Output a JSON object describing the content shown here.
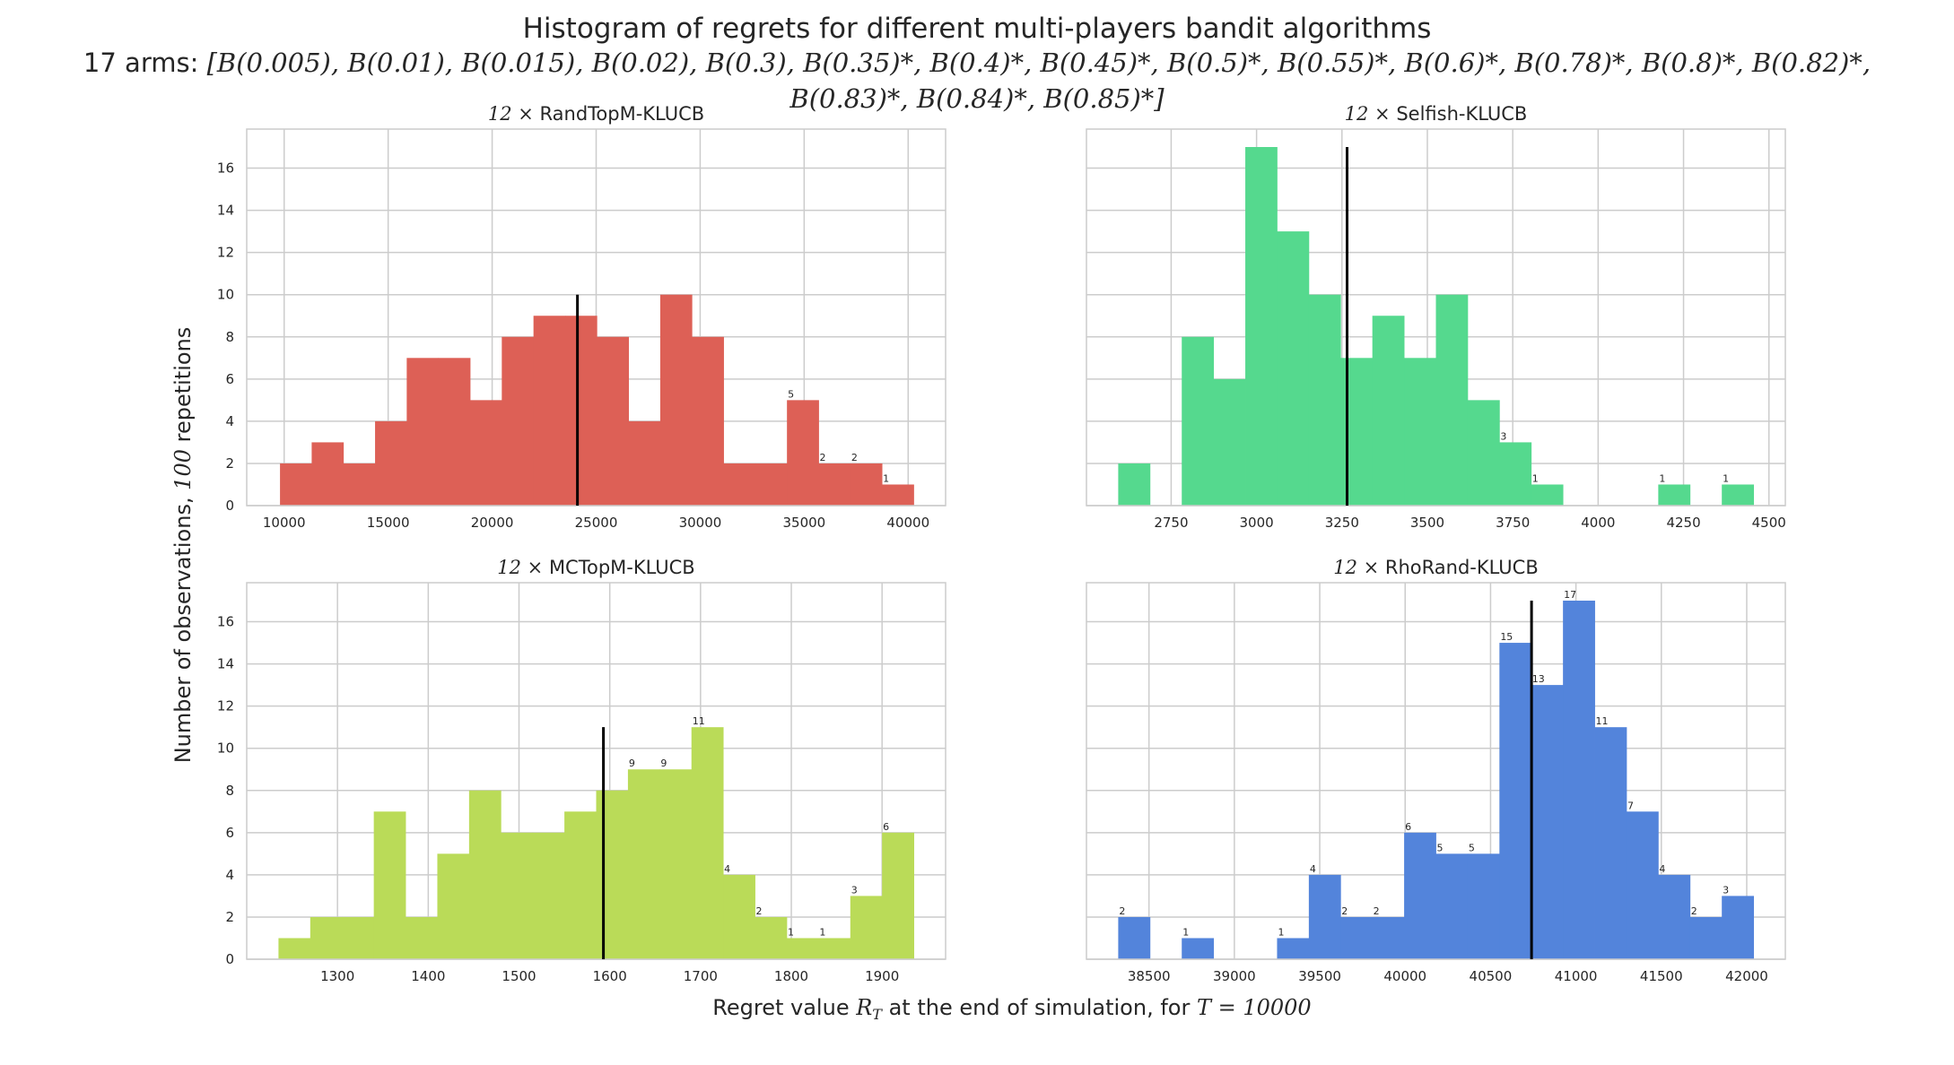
{
  "figure": {
    "title": "Histogram of regrets for different multi-players bandit algorithms",
    "arms_prefix": "17 arms: ",
    "arms_line1": "[B(0.005), B(0.01), B(0.015), B(0.02), B(0.3), B(0.35)*, B(0.4)*, B(0.45)*, B(0.5)*, B(0.55)*, B(0.6)*, B(0.78)*, B(0.8)*, B(0.82)*,",
    "arms_line2": "B(0.83)*, B(0.84)*, B(0.85)*]",
    "ylabel_text": "Number of observations, ",
    "ylabel_math": "100",
    "ylabel_suffix": " repetitions",
    "xlabel_text": "Regret value ",
    "xlabel_math1": "R",
    "xlabel_math1_sub": "T",
    "xlabel_mid": " at the end of simulation, for ",
    "xlabel_math2": "T = 10000",
    "grid": true
  },
  "chart_data": [
    {
      "type": "bar",
      "title_prefix": "12 ×",
      "title": "RandTopM-KLUCB",
      "color": "#dd6056",
      "bin_edges": [
        9800,
        11323,
        12847,
        14370,
        15893,
        17417,
        18940,
        20463,
        21987,
        23510,
        25033,
        26557,
        28080,
        29603,
        31127,
        32650,
        34173,
        35697,
        37220,
        38743,
        40267
      ],
      "counts": [
        2,
        3,
        2,
        4,
        7,
        7,
        5,
        8,
        9,
        9,
        8,
        4,
        10,
        8,
        2,
        2,
        5,
        2,
        2,
        1
      ],
      "xticks": [
        10000,
        15000,
        20000,
        25000,
        30000,
        35000,
        40000
      ],
      "xlim": [
        8200,
        41800
      ],
      "ylim": [
        0,
        17.85
      ],
      "yticks": [
        0,
        2,
        4,
        6,
        8,
        10,
        12,
        14,
        16
      ],
      "show_yticks": true,
      "mean": 24100,
      "mean_line_height": 10,
      "bar_labels": [
        {
          "bin": 16,
          "text": "5"
        },
        {
          "bin": 17,
          "text": "2"
        },
        {
          "bin": 18,
          "text": "2"
        },
        {
          "bin": 19,
          "text": "1"
        }
      ]
    },
    {
      "type": "bar",
      "title_prefix": "12 ×",
      "title": "Selfish-KLUCB",
      "color": "#55d98e",
      "bin_edges": [
        2595,
        2688,
        2781,
        2874,
        2967,
        3060,
        3153,
        3246,
        3339,
        3432,
        3525,
        3618,
        3711,
        3804,
        3897,
        3990,
        4083,
        4176,
        4269,
        4362,
        4455
      ],
      "counts": [
        2,
        0,
        8,
        6,
        17,
        13,
        10,
        7,
        9,
        7,
        10,
        5,
        3,
        1,
        0,
        0,
        0,
        1,
        0,
        1
      ],
      "xticks": [
        2750,
        3000,
        3250,
        3500,
        3750,
        4000,
        4250,
        4500
      ],
      "xlim": [
        2502,
        4548
      ],
      "ylim": [
        0,
        17.85
      ],
      "yticks": [
        0,
        2,
        4,
        6,
        8,
        10,
        12,
        14,
        16
      ],
      "show_yticks": false,
      "mean": 3265,
      "mean_line_height": 17,
      "bar_labels": [
        {
          "bin": 12,
          "text": "3"
        },
        {
          "bin": 13,
          "text": "1"
        },
        {
          "bin": 17,
          "text": "1"
        },
        {
          "bin": 19,
          "text": "1"
        }
      ]
    },
    {
      "type": "bar",
      "title_prefix": "12 ×",
      "title": "MCTopM-KLUCB",
      "color": "#badb58",
      "bin_edges": [
        1235,
        1270,
        1305,
        1340,
        1375,
        1410,
        1445,
        1480,
        1515,
        1550,
        1585,
        1620,
        1655,
        1690,
        1725,
        1760,
        1795,
        1830,
        1865,
        1900,
        1935
      ],
      "counts": [
        1,
        2,
        2,
        7,
        2,
        5,
        8,
        6,
        6,
        7,
        8,
        9,
        9,
        11,
        4,
        2,
        1,
        1,
        3,
        6
      ],
      "xticks": [
        1300,
        1400,
        1500,
        1600,
        1700,
        1800,
        1900
      ],
      "xlim": [
        1200,
        1970
      ],
      "ylim": [
        0,
        17.85
      ],
      "yticks": [
        0,
        2,
        4,
        6,
        8,
        10,
        12,
        14,
        16
      ],
      "show_yticks": true,
      "mean": 1593,
      "mean_line_height": 11,
      "bar_labels": [
        {
          "bin": 11,
          "text": "9"
        },
        {
          "bin": 12,
          "text": "9"
        },
        {
          "bin": 13,
          "text": "11"
        },
        {
          "bin": 14,
          "text": "4"
        },
        {
          "bin": 15,
          "text": "2"
        },
        {
          "bin": 16,
          "text": "1"
        },
        {
          "bin": 17,
          "text": "1"
        },
        {
          "bin": 18,
          "text": "3"
        },
        {
          "bin": 19,
          "text": "6"
        }
      ]
    },
    {
      "type": "bar",
      "title_prefix": "12 ×",
      "title": "RhoRand-KLUCB",
      "color": "#5384db",
      "bin_edges": [
        38320,
        38506,
        38692,
        38878,
        39064,
        39250,
        39436,
        39622,
        39808,
        39994,
        40180,
        40366,
        40552,
        40738,
        40924,
        41110,
        41296,
        41482,
        41668,
        41854,
        42040
      ],
      "counts": [
        2,
        0,
        1,
        0,
        0,
        1,
        4,
        2,
        2,
        6,
        5,
        5,
        15,
        13,
        17,
        11,
        7,
        4,
        2,
        3
      ],
      "xticks": [
        38500,
        39000,
        39500,
        40000,
        40500,
        41000,
        41500,
        42000
      ],
      "xlim": [
        38134,
        42226
      ],
      "ylim": [
        0,
        17.85
      ],
      "yticks": [
        0,
        2,
        4,
        6,
        8,
        10,
        12,
        14,
        16
      ],
      "show_yticks": false,
      "mean": 40740,
      "mean_line_height": 17,
      "bar_labels": [
        {
          "bin": 0,
          "text": "2"
        },
        {
          "bin": 2,
          "text": "1"
        },
        {
          "bin": 5,
          "text": "1"
        },
        {
          "bin": 6,
          "text": "4"
        },
        {
          "bin": 7,
          "text": "2"
        },
        {
          "bin": 8,
          "text": "2"
        },
        {
          "bin": 9,
          "text": "6"
        },
        {
          "bin": 10,
          "text": "5"
        },
        {
          "bin": 11,
          "text": "5"
        },
        {
          "bin": 12,
          "text": "15"
        },
        {
          "bin": 13,
          "text": "13"
        },
        {
          "bin": 14,
          "text": "17"
        },
        {
          "bin": 15,
          "text": "11"
        },
        {
          "bin": 16,
          "text": "7"
        },
        {
          "bin": 17,
          "text": "4"
        },
        {
          "bin": 18,
          "text": "2"
        },
        {
          "bin": 19,
          "text": "3"
        }
      ]
    }
  ]
}
